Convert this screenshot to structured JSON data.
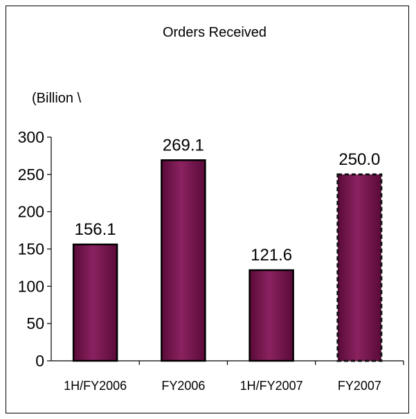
{
  "chart_data": {
    "type": "bar",
    "title": "Orders Received",
    "unit_label": "(Billion \\",
    "categories": [
      "1H/FY2006",
      "FY2006",
      "1H/FY2007",
      "FY2007"
    ],
    "values": [
      156.1,
      269.1,
      121.6,
      250.0
    ],
    "value_labels": [
      "156.1",
      "269.1",
      "121.6",
      "250.0"
    ],
    "forecast": [
      false,
      false,
      false,
      true
    ],
    "ylim": [
      0,
      300
    ],
    "yticks": [
      "0",
      "50",
      "100",
      "150",
      "200",
      "250",
      "300"
    ],
    "grid": false,
    "bar_color": "#6b0f45",
    "bar_highlight": "#9a2d6e"
  }
}
